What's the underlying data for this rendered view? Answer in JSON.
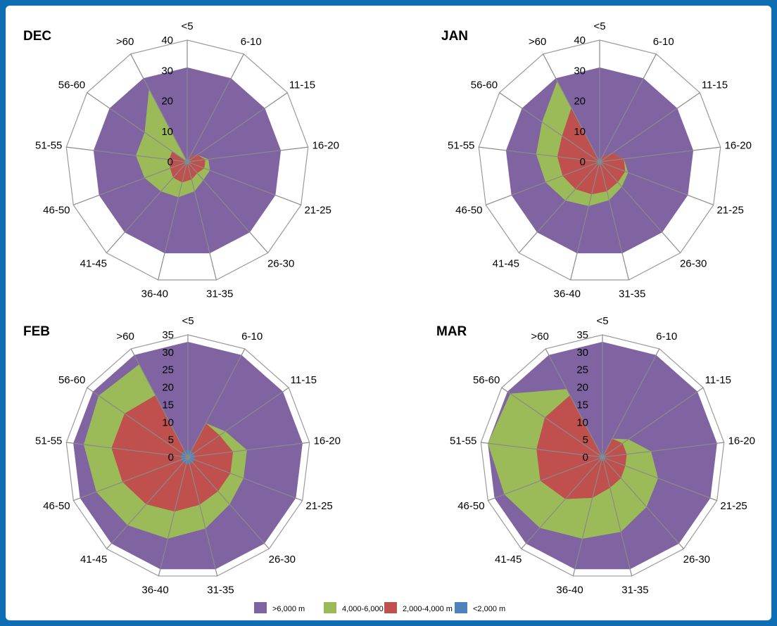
{
  "chart_data": [
    {
      "type": "radar",
      "title": "DEC",
      "categories": [
        "<5",
        "6-10",
        "11-15",
        "16-20",
        "21-25",
        "26-30",
        "31-35",
        "36-40",
        "41-45",
        "46-50",
        "51-55",
        "56-60",
        ">60"
      ],
      "ticks": [
        0,
        10,
        20,
        30,
        40
      ],
      "rmax": 40,
      "series": [
        {
          "name": ">6,000 m",
          "values": [
            31,
            31,
            31,
            31,
            31,
            31,
            31,
            31,
            31,
            31,
            31,
            31,
            31
          ]
        },
        {
          "name": "4,000-6,000 m",
          "values": [
            0,
            2,
            4,
            7,
            8,
            8,
            10,
            12,
            13,
            15,
            17,
            17,
            27
          ]
        },
        {
          "name": "2,000-4,000 m",
          "values": [
            0,
            2,
            4,
            6,
            6,
            5,
            6,
            7,
            7,
            6,
            6,
            6,
            0
          ]
        },
        {
          "name": "<2,000 m",
          "values": [
            1,
            1,
            1,
            1,
            1,
            1,
            1,
            1,
            1,
            1,
            1,
            1,
            1
          ]
        }
      ]
    },
    {
      "type": "radar",
      "title": "JAN",
      "categories": [
        "<5",
        "6-10",
        "11-15",
        "16-20",
        "21-25",
        "26-30",
        "31-35",
        "36-40",
        "41-45",
        "46-50",
        "51-55",
        "56-60",
        ">60"
      ],
      "ticks": [
        0,
        10,
        20,
        30,
        40
      ],
      "rmax": 40,
      "series": [
        {
          "name": ">6,000 m",
          "values": [
            31,
            31,
            31,
            31,
            31,
            31,
            31,
            31,
            31,
            31,
            31,
            31,
            31
          ]
        },
        {
          "name": "4,000-6,000 m",
          "values": [
            0,
            2,
            5,
            8,
            10,
            11,
            13,
            15,
            17,
            19,
            21,
            23,
            30
          ]
        },
        {
          "name": "2,000-4,000 m",
          "values": [
            0,
            2,
            5,
            8,
            9,
            9,
            10,
            11,
            12,
            13,
            14,
            15,
            20
          ]
        },
        {
          "name": "<2,000 m",
          "values": [
            1,
            1,
            1,
            1,
            1,
            1,
            1,
            1,
            1,
            1,
            1,
            1,
            1
          ]
        }
      ]
    },
    {
      "type": "radar",
      "title": "FEB",
      "categories": [
        "<5",
        "6-10",
        "11-15",
        "16-20",
        "21-25",
        "26-30",
        "31-35",
        "36-40",
        "41-45",
        "46-50",
        "51-55",
        "56-60",
        ">60"
      ],
      "ticks": [
        0,
        5,
        10,
        15,
        20,
        25,
        30,
        35
      ],
      "rmax": 35,
      "series": [
        {
          "name": ">6,000 m",
          "values": [
            33,
            33,
            33,
            33,
            33,
            33,
            33,
            33,
            33,
            33,
            33,
            33,
            33
          ]
        },
        {
          "name": "4,000-6,000 m",
          "values": [
            0,
            11,
            13,
            17,
            17,
            18,
            21,
            24,
            26,
            28,
            30,
            31,
            30
          ]
        },
        {
          "name": "2,000-4,000 m",
          "values": [
            0,
            11,
            11,
            13,
            13,
            13,
            14,
            16,
            18,
            20,
            22,
            22,
            20
          ]
        },
        {
          "name": "<2,000 m",
          "values": [
            2,
            2,
            2,
            2,
            2,
            2,
            2,
            2,
            2,
            2,
            2,
            2,
            2
          ]
        }
      ]
    },
    {
      "type": "radar",
      "title": "MAR",
      "categories": [
        "<5",
        "6-10",
        "11-15",
        "16-20",
        "21-25",
        "26-30",
        "31-35",
        "36-40",
        "41-45",
        "46-50",
        "51-55",
        "56-60",
        ">60"
      ],
      "ticks": [
        0,
        5,
        10,
        15,
        20,
        25,
        30,
        35
      ],
      "rmax": 35,
      "series": [
        {
          "name": ">6,000 m",
          "values": [
            33,
            33,
            33,
            33,
            33,
            33,
            33,
            33,
            33,
            33,
            33,
            33,
            33
          ]
        },
        {
          "name": "4,000-6,000 m",
          "values": [
            0,
            6,
            9,
            14,
            17,
            19,
            22,
            24,
            27,
            30,
            33,
            32,
            22
          ]
        },
        {
          "name": "2,000-4,000 m",
          "values": [
            0,
            6,
            7,
            7,
            7,
            8,
            9,
            12,
            16,
            19,
            19,
            20,
            20
          ]
        },
        {
          "name": "<2,000 m",
          "values": [
            1,
            1,
            1,
            1,
            1,
            1,
            1,
            1,
            1,
            1,
            1,
            1,
            1
          ]
        }
      ]
    }
  ],
  "legend": [
    {
      "label": ">6,000 m",
      "color": "#8064a2"
    },
    {
      "label": "4,000-6,000 m",
      "color": "#9bbb59"
    },
    {
      "label": "2,000-4,000 m",
      "color": "#c0504d"
    },
    {
      "label": "<2,000 m",
      "color": "#4f81bd"
    }
  ],
  "colors": {
    "frame": "#0f6db4",
    "gridline": "#9a9a9a",
    "spoke": "#8a8a8a"
  }
}
